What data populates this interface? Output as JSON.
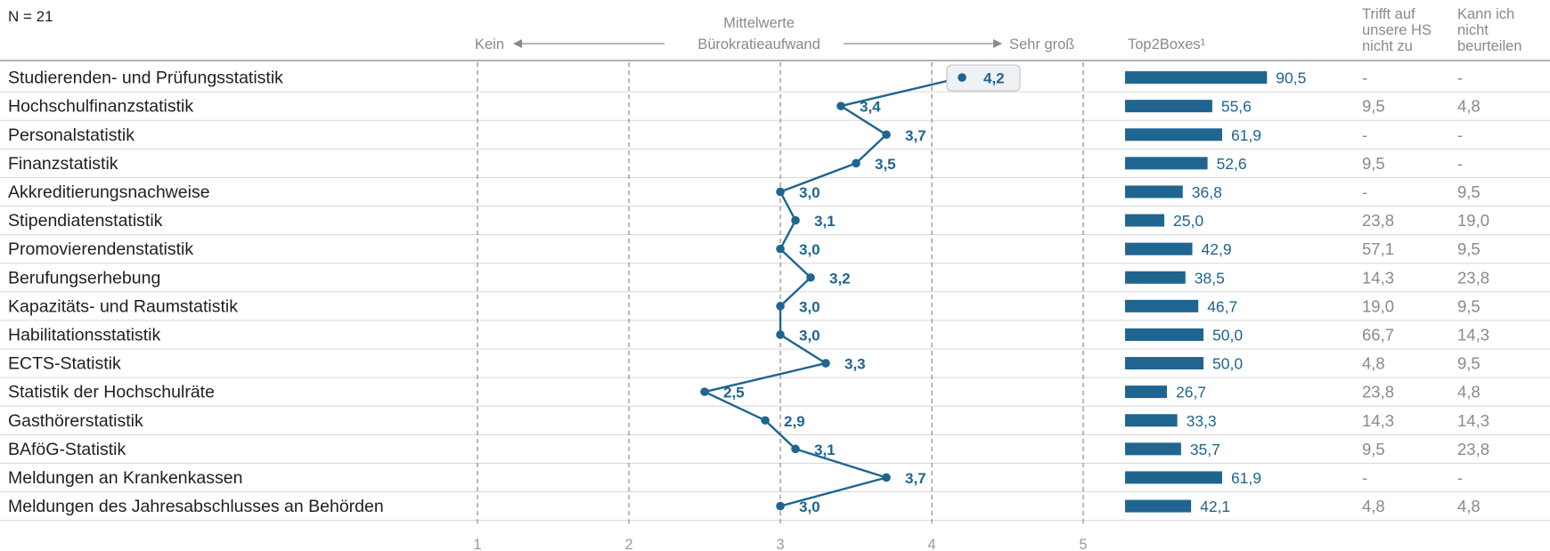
{
  "n_label": "N = 21",
  "header": {
    "mean_title_line1": "Mittelwerte",
    "mean_title_line2": "Bürokratieaufwand",
    "left_anchor": "Kein",
    "right_anchor": "Sehr groß",
    "top2_title": "Top2Boxes¹",
    "col3_lines": [
      "Trifft auf",
      "unsere HS",
      "nicht zu"
    ],
    "col4_lines": [
      "Kann ich",
      "nicht",
      "beurteilen"
    ]
  },
  "colors": {
    "accent": "#1f6590",
    "grid": "#7f7f7f",
    "muted": "#8a8a8a"
  },
  "chart_data": {
    "type": "line",
    "x_ticks": [
      "1",
      "2",
      "3",
      "4",
      "5"
    ],
    "xlim": [
      1,
      5
    ],
    "categories": [
      "Studierenden- und Prüfungsstatistik",
      "Hochschulfinanzstatistik",
      "Personalstatistik",
      "Finanzstatistik",
      "Akkreditierungsnachweise",
      "Stipendiatenstatistik",
      "Promovierendenstatistik",
      "Berufungserhebung",
      "Kapazitäts- und Raumstatistik",
      "Habilitationsstatistik",
      "ECTS-Statistik",
      "Statistik der Hochschulräte",
      "Gasthörerstatistik",
      "BAföG-Statistik",
      "Meldungen an Krankenkassen",
      "Meldungen des Jahresabschlusses an Behörden"
    ],
    "means": [
      4.2,
      3.4,
      3.7,
      3.5,
      3.0,
      3.1,
      3.0,
      3.2,
      3.0,
      3.0,
      3.3,
      2.5,
      2.9,
      3.1,
      3.7,
      3.0
    ],
    "mean_labels": [
      "4,2",
      "3,4",
      "3,7",
      "3,5",
      "3,0",
      "3,1",
      "3,0",
      "3,2",
      "3,0",
      "3,0",
      "3,3",
      "2,5",
      "2,9",
      "3,1",
      "3,7",
      "3,0"
    ],
    "top2": [
      90.5,
      55.6,
      61.9,
      52.6,
      36.8,
      25.0,
      42.9,
      38.5,
      46.7,
      50.0,
      50.0,
      26.7,
      33.3,
      35.7,
      61.9,
      42.1
    ],
    "top2_labels": [
      "90,5",
      "55,6",
      "61,9",
      "52,6",
      "36,8",
      "25,0",
      "42,9",
      "38,5",
      "46,7",
      "50,0",
      "50,0",
      "26,7",
      "33,3",
      "35,7",
      "61,9",
      "42,1"
    ],
    "trifft_nicht_zu": [
      "-",
      "9,5",
      "-",
      "9,5",
      "-",
      "23,8",
      "57,1",
      "14,3",
      "19,0",
      "66,7",
      "4,8",
      "23,8",
      "14,3",
      "9,5",
      "-",
      "4,8"
    ],
    "kann_nicht_beurteilen": [
      "-",
      "4,8",
      "-",
      "-",
      "9,5",
      "19,0",
      "9,5",
      "23,8",
      "9,5",
      "14,3",
      "9,5",
      "4,8",
      "14,3",
      "23,8",
      "-",
      "4,8"
    ]
  }
}
